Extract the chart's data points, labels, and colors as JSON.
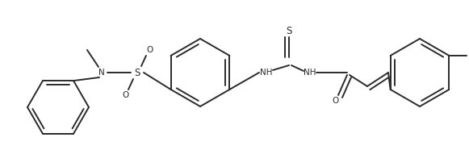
{
  "bg_color": "#ffffff",
  "line_color": "#2a2a2a",
  "line_width": 1.4,
  "font_size": 7.5,
  "fig_width": 5.81,
  "fig_height": 1.91,
  "dpi": 100,
  "xlim": [
    0,
    581
  ],
  "ylim": [
    0,
    191
  ]
}
